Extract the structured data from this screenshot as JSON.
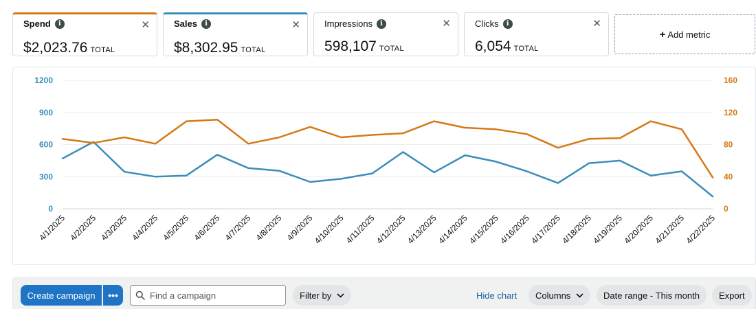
{
  "metrics": [
    {
      "name": "Spend",
      "value": "$2,023.76",
      "unit": "TOTAL"
    },
    {
      "name": "Sales",
      "value": "$8,302.95",
      "unit": "TOTAL"
    },
    {
      "name": "Impressions",
      "value": "598,107",
      "unit": "TOTAL"
    },
    {
      "name": "Clicks",
      "value": "6,054",
      "unit": "TOTAL"
    }
  ],
  "info_glyph": "i",
  "close_glyph": "✕",
  "add_metric": {
    "plus": "+",
    "label": "Add metric"
  },
  "colors": {
    "spend": "#d47a15",
    "sales": "#3a8dbb",
    "primary": "#1f74c6",
    "link": "#2162a1"
  },
  "chart_data": {
    "type": "line",
    "x": [
      "4/1/2025",
      "4/2/2025",
      "4/3/2025",
      "4/4/2025",
      "4/5/2025",
      "4/6/2025",
      "4/7/2025",
      "4/8/2025",
      "4/9/2025",
      "4/10/2025",
      "4/11/2025",
      "4/12/2025",
      "4/13/2025",
      "4/14/2025",
      "4/15/2025",
      "4/16/2025",
      "4/17/2025",
      "4/18/2025",
      "4/19/2025",
      "4/20/2025",
      "4/21/2025",
      "4/22/2025"
    ],
    "left_axis": {
      "ticks": [
        "0",
        "300",
        "600",
        "900",
        "1200"
      ],
      "range": [
        0,
        1200
      ],
      "color": "#3a8dbb"
    },
    "right_axis": {
      "ticks": [
        "0",
        "40",
        "80",
        "120",
        "160"
      ],
      "range": [
        0,
        160
      ],
      "color": "#d47a15"
    },
    "series": [
      {
        "axis": "left",
        "color": "#3a8dbb",
        "values": [
          470,
          625,
          345,
          300,
          310,
          505,
          380,
          355,
          250,
          280,
          330,
          530,
          340,
          500,
          440,
          350,
          240,
          425,
          450,
          310,
          350,
          115
        ]
      },
      {
        "axis": "right",
        "color": "#d47a15",
        "values": [
          87,
          82,
          89,
          81,
          109,
          111,
          81,
          89,
          102,
          89,
          92,
          94,
          109,
          101,
          99,
          93,
          76,
          87,
          88,
          109,
          99,
          39
        ]
      }
    ],
    "grid": true
  },
  "toolbar": {
    "create_campaign": "Create campaign",
    "more_glyph": "•••",
    "search_placeholder": "Find a campaign",
    "filter_by": "Filter by",
    "hide_chart": "Hide chart",
    "columns": "Columns",
    "date_range": "Date range - This month",
    "export": "Export"
  }
}
